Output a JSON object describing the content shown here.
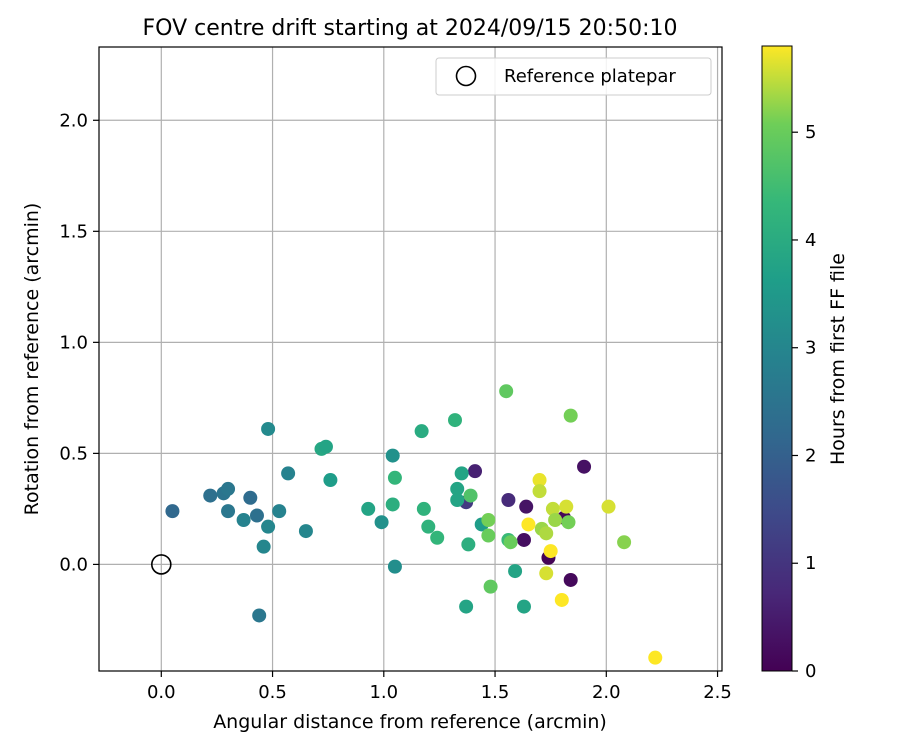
{
  "chart_data": {
    "type": "scatter",
    "title": "FOV centre drift starting at 2024/09/15 20:50:10",
    "xlabel": "Angular distance from reference (arcmin)",
    "ylabel": "Rotation from reference (arcmin)",
    "xlim": [
      -0.28,
      2.52
    ],
    "ylim": [
      -0.48,
      2.33
    ],
    "xticks": [
      0.0,
      0.5,
      1.0,
      1.5,
      2.0,
      2.5
    ],
    "xtick_labels": [
      "0.0",
      "0.5",
      "1.0",
      "1.5",
      "2.0",
      "2.5"
    ],
    "yticks": [
      0.0,
      0.5,
      1.0,
      1.5,
      2.0
    ],
    "ytick_labels": [
      "0.0",
      "0.5",
      "1.0",
      "1.5",
      "2.0"
    ],
    "grid": true,
    "legend": {
      "position": "top-right",
      "label": "Reference platepar"
    },
    "reference_point": {
      "x": 0.0,
      "y": 0.0
    },
    "colorbar": {
      "label": "Hours from first FF file",
      "colormap": "viridis",
      "range": [
        0,
        5.8
      ],
      "ticks": [
        0,
        1,
        2,
        3,
        4,
        5
      ],
      "tick_labels": [
        "0",
        "1",
        "2",
        "3",
        "4",
        "5"
      ]
    },
    "points": [
      {
        "x": 1.74,
        "y": 0.03,
        "c": 0.05
      },
      {
        "x": 1.84,
        "y": -0.07,
        "c": 0.15
      },
      {
        "x": 1.63,
        "y": 0.11,
        "c": 0.25
      },
      {
        "x": 1.64,
        "y": 0.26,
        "c": 0.35
      },
      {
        "x": 1.9,
        "y": 0.44,
        "c": 0.3
      },
      {
        "x": 1.81,
        "y": 0.21,
        "c": 0.1
      },
      {
        "x": 1.41,
        "y": 0.42,
        "c": 0.6
      },
      {
        "x": 1.56,
        "y": 0.29,
        "c": 0.8
      },
      {
        "x": 1.37,
        "y": 0.28,
        "c": 1.1
      },
      {
        "x": 0.05,
        "y": 0.24,
        "c": 2.2
      },
      {
        "x": 0.22,
        "y": 0.31,
        "c": 2.4
      },
      {
        "x": 0.28,
        "y": 0.32,
        "c": 2.5
      },
      {
        "x": 0.3,
        "y": 0.34,
        "c": 2.6
      },
      {
        "x": 0.4,
        "y": 0.3,
        "c": 2.3
      },
      {
        "x": 0.3,
        "y": 0.24,
        "c": 2.6
      },
      {
        "x": 0.43,
        "y": 0.22,
        "c": 2.4
      },
      {
        "x": 0.37,
        "y": 0.2,
        "c": 2.9
      },
      {
        "x": 0.44,
        "y": -0.23,
        "c": 2.6
      },
      {
        "x": 0.48,
        "y": 0.17,
        "c": 3.0
      },
      {
        "x": 0.46,
        "y": 0.08,
        "c": 3.0
      },
      {
        "x": 0.48,
        "y": 0.61,
        "c": 3.1
      },
      {
        "x": 0.57,
        "y": 0.41,
        "c": 2.9
      },
      {
        "x": 0.53,
        "y": 0.24,
        "c": 2.9
      },
      {
        "x": 0.65,
        "y": 0.15,
        "c": 3.0
      },
      {
        "x": 0.72,
        "y": 0.52,
        "c": 3.9
      },
      {
        "x": 0.74,
        "y": 0.53,
        "c": 3.8
      },
      {
        "x": 0.76,
        "y": 0.38,
        "c": 3.6
      },
      {
        "x": 0.93,
        "y": 0.25,
        "c": 3.8
      },
      {
        "x": 0.99,
        "y": 0.19,
        "c": 3.3
      },
      {
        "x": 1.04,
        "y": 0.49,
        "c": 3.3
      },
      {
        "x": 1.05,
        "y": -0.01,
        "c": 3.2
      },
      {
        "x": 1.04,
        "y": 0.27,
        "c": 4.1
      },
      {
        "x": 1.05,
        "y": 0.39,
        "c": 4.3
      },
      {
        "x": 1.17,
        "y": 0.6,
        "c": 4.0
      },
      {
        "x": 1.18,
        "y": 0.25,
        "c": 4.2
      },
      {
        "x": 1.2,
        "y": 0.17,
        "c": 4.2
      },
      {
        "x": 1.24,
        "y": 0.12,
        "c": 4.3
      },
      {
        "x": 1.32,
        "y": 0.65,
        "c": 4.2
      },
      {
        "x": 1.33,
        "y": 0.34,
        "c": 3.8
      },
      {
        "x": 1.33,
        "y": 0.29,
        "c": 3.8
      },
      {
        "x": 1.35,
        "y": 0.41,
        "c": 3.8
      },
      {
        "x": 1.37,
        "y": -0.19,
        "c": 3.8
      },
      {
        "x": 1.38,
        "y": 0.09,
        "c": 4.1
      },
      {
        "x": 1.39,
        "y": 0.31,
        "c": 4.7
      },
      {
        "x": 1.44,
        "y": 0.18,
        "c": 3.6
      },
      {
        "x": 1.47,
        "y": 0.2,
        "c": 5.1
      },
      {
        "x": 1.47,
        "y": 0.13,
        "c": 5.0
      },
      {
        "x": 1.48,
        "y": -0.1,
        "c": 4.9
      },
      {
        "x": 1.55,
        "y": 0.78,
        "c": 4.9
      },
      {
        "x": 1.56,
        "y": 0.11,
        "c": 4.4
      },
      {
        "x": 1.57,
        "y": 0.1,
        "c": 5.0
      },
      {
        "x": 1.59,
        "y": -0.03,
        "c": 3.8
      },
      {
        "x": 1.63,
        "y": -0.19,
        "c": 3.8
      },
      {
        "x": 1.65,
        "y": 0.18,
        "c": 5.8
      },
      {
        "x": 1.7,
        "y": 0.38,
        "c": 5.7
      },
      {
        "x": 1.7,
        "y": 0.33,
        "c": 5.5
      },
      {
        "x": 1.71,
        "y": 0.16,
        "c": 5.3
      },
      {
        "x": 1.73,
        "y": 0.14,
        "c": 5.4
      },
      {
        "x": 1.73,
        "y": -0.04,
        "c": 5.6
      },
      {
        "x": 1.75,
        "y": 0.06,
        "c": 5.8
      },
      {
        "x": 1.76,
        "y": 0.25,
        "c": 5.5
      },
      {
        "x": 1.77,
        "y": 0.2,
        "c": 5.3
      },
      {
        "x": 1.8,
        "y": -0.16,
        "c": 5.8
      },
      {
        "x": 1.82,
        "y": 0.26,
        "c": 5.6
      },
      {
        "x": 1.83,
        "y": 0.19,
        "c": 5.1
      },
      {
        "x": 1.84,
        "y": 0.67,
        "c": 5.1
      },
      {
        "x": 2.01,
        "y": 0.26,
        "c": 5.6
      },
      {
        "x": 2.08,
        "y": 0.1,
        "c": 5.2
      },
      {
        "x": 2.22,
        "y": -0.42,
        "c": 5.8
      }
    ]
  }
}
